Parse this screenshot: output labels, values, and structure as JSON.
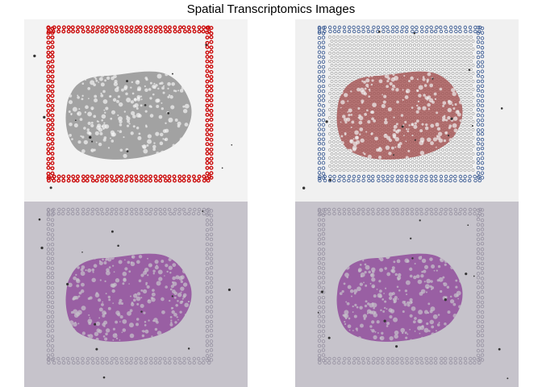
{
  "figure": {
    "title": "Spatial Transcriptomics Images"
  },
  "panels": [
    {
      "kind": "fiducial-overlay",
      "colors": {
        "bg": "#f3f3f3",
        "tissue": "#5f5f5f",
        "fiducial": "#cc1010"
      }
    },
    {
      "kind": "spot-overlay",
      "colors": {
        "bg": "#f0f0f0",
        "tissue": "#a04848",
        "spots": "#9a9a9a",
        "fiducial": "#2c4f8c"
      }
    },
    {
      "kind": "he-lowres",
      "colors": {
        "bg": "#c6c3cb",
        "tissue": "#8a3e95",
        "spots": "#9590a0"
      }
    },
    {
      "kind": "he-hires",
      "colors": {
        "bg": "#c6c3cb",
        "tissue": "#8a3e95",
        "spots": "#9590a0"
      }
    }
  ]
}
